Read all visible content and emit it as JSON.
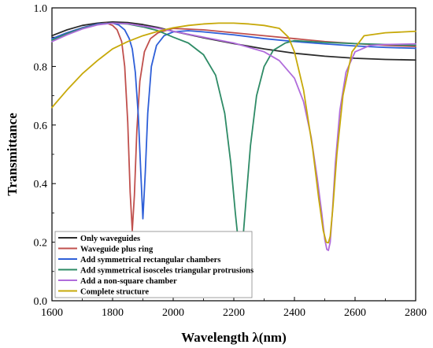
{
  "chart_data": {
    "type": "line",
    "title": "",
    "xlabel": "Wavelength λ(nm)",
    "ylabel": "Transmittance",
    "xlim": [
      1600,
      2800
    ],
    "ylim": [
      0.0,
      1.0
    ],
    "xticks": [
      1600,
      1800,
      2000,
      2200,
      2400,
      2600,
      2800
    ],
    "xtick_labels": [
      "1600",
      "1800",
      "2000",
      "2200",
      "2400",
      "2600",
      "2800"
    ],
    "yticks": [
      0.0,
      0.2,
      0.4,
      0.6,
      0.8,
      1.0
    ],
    "ytick_labels": [
      "0.0",
      "0.2",
      "0.4",
      "0.6",
      "0.8",
      "1.0"
    ],
    "grid": false,
    "legend_position": "bottom-left",
    "series": [
      {
        "name": "Only waveguides",
        "color": "#2b2b2b",
        "x": [
          1600,
          1650,
          1700,
          1750,
          1800,
          1850,
          1900,
          1950,
          2000,
          2100,
          2200,
          2300,
          2400,
          2500,
          2600,
          2700,
          2800
        ],
        "y": [
          0.905,
          0.925,
          0.94,
          0.948,
          0.952,
          0.95,
          0.943,
          0.933,
          0.92,
          0.898,
          0.878,
          0.86,
          0.845,
          0.835,
          0.828,
          0.824,
          0.822
        ]
      },
      {
        "name": "Waveguide plus ring",
        "color": "#c0504d",
        "x": [
          1600,
          1650,
          1700,
          1750,
          1780,
          1800,
          1815,
          1830,
          1840,
          1850,
          1858,
          1865,
          1872,
          1880,
          1890,
          1905,
          1925,
          1950,
          2000,
          2100,
          2200,
          2300,
          2400,
          2500,
          2600,
          2700,
          2800
        ],
        "y": [
          0.895,
          0.915,
          0.932,
          0.945,
          0.948,
          0.94,
          0.925,
          0.885,
          0.8,
          0.61,
          0.37,
          0.24,
          0.36,
          0.58,
          0.75,
          0.85,
          0.895,
          0.915,
          0.93,
          0.925,
          0.915,
          0.905,
          0.895,
          0.885,
          0.878,
          0.872,
          0.868
        ]
      },
      {
        "name": "Add symmetrical rectangular chambers",
        "color": "#2e5fd8",
        "x": [
          1600,
          1650,
          1700,
          1750,
          1800,
          1820,
          1840,
          1855,
          1865,
          1875,
          1885,
          1893,
          1900,
          1908,
          1916,
          1928,
          1945,
          1970,
          2000,
          2050,
          2100,
          2200,
          2300,
          2400,
          2500,
          2600,
          2700,
          2800
        ],
        "y": [
          0.895,
          0.915,
          0.932,
          0.945,
          0.948,
          0.942,
          0.925,
          0.895,
          0.86,
          0.78,
          0.63,
          0.44,
          0.28,
          0.44,
          0.64,
          0.8,
          0.872,
          0.905,
          0.918,
          0.922,
          0.918,
          0.908,
          0.895,
          0.885,
          0.877,
          0.87,
          0.865,
          0.862
        ]
      },
      {
        "name": "Add symmetrical isosceles triangular protrusions",
        "color": "#2e8b66",
        "x": [
          1600,
          1650,
          1700,
          1750,
          1800,
          1850,
          1900,
          1950,
          2000,
          2050,
          2100,
          2140,
          2170,
          2190,
          2205,
          2215,
          2222,
          2230,
          2240,
          2255,
          2275,
          2300,
          2330,
          2370,
          2400,
          2450,
          2500,
          2600,
          2700,
          2800
        ],
        "y": [
          0.89,
          0.912,
          0.93,
          0.943,
          0.948,
          0.945,
          0.935,
          0.922,
          0.9,
          0.88,
          0.84,
          0.77,
          0.64,
          0.47,
          0.3,
          0.2,
          0.168,
          0.21,
          0.34,
          0.53,
          0.7,
          0.8,
          0.855,
          0.88,
          0.888,
          0.885,
          0.882,
          0.878,
          0.875,
          0.872
        ]
      },
      {
        "name": "Add a non-square chamber",
        "color": "#b06cdb",
        "x": [
          1600,
          1650,
          1700,
          1750,
          1800,
          1850,
          1900,
          1950,
          2000,
          2100,
          2200,
          2300,
          2350,
          2400,
          2430,
          2455,
          2475,
          2490,
          2500,
          2507,
          2512,
          2518,
          2525,
          2535,
          2550,
          2570,
          2600,
          2650,
          2700,
          2800
        ],
        "y": [
          0.885,
          0.908,
          0.928,
          0.942,
          0.948,
          0.946,
          0.938,
          0.93,
          0.92,
          0.9,
          0.88,
          0.85,
          0.82,
          0.76,
          0.68,
          0.56,
          0.42,
          0.3,
          0.21,
          0.175,
          0.172,
          0.2,
          0.3,
          0.47,
          0.65,
          0.78,
          0.85,
          0.872,
          0.875,
          0.877
        ]
      },
      {
        "name": "Complete structure",
        "color": "#c7a90a",
        "x": [
          1600,
          1650,
          1700,
          1750,
          1800,
          1850,
          1900,
          1950,
          2000,
          2050,
          2100,
          2150,
          2200,
          2250,
          2300,
          2350,
          2380,
          2400,
          2430,
          2460,
          2480,
          2495,
          2505,
          2512,
          2518,
          2527,
          2540,
          2560,
          2590,
          2630,
          2700,
          2800
        ],
        "y": [
          0.66,
          0.72,
          0.775,
          0.82,
          0.86,
          0.885,
          0.905,
          0.92,
          0.932,
          0.94,
          0.945,
          0.948,
          0.948,
          0.945,
          0.94,
          0.93,
          0.9,
          0.85,
          0.72,
          0.52,
          0.35,
          0.24,
          0.2,
          0.198,
          0.22,
          0.32,
          0.5,
          0.7,
          0.85,
          0.905,
          0.915,
          0.92
        ]
      }
    ]
  }
}
